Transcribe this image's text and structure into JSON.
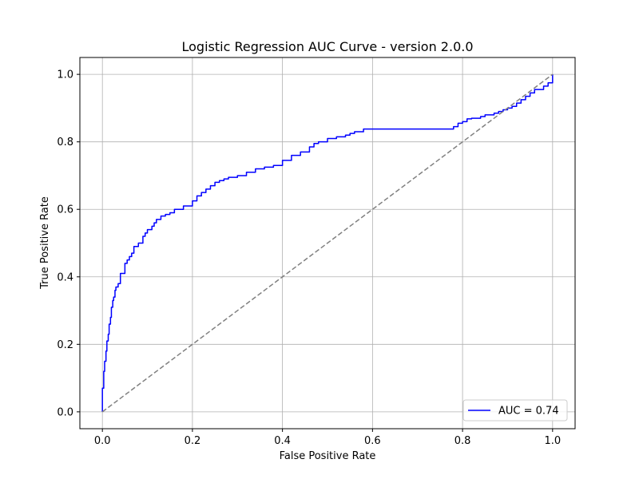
{
  "chart_data": {
    "type": "line",
    "title": "Logistic Regression AUC Curve - version 2.0.0",
    "xlabel": "False Positive Rate",
    "ylabel": "True Positive Rate",
    "xlim": [
      -0.05,
      1.05
    ],
    "ylim": [
      -0.05,
      1.05
    ],
    "xticks": [
      0.0,
      0.2,
      0.4,
      0.6,
      0.8,
      1.0
    ],
    "xtick_labels": [
      "0.0",
      "0.2",
      "0.4",
      "0.6",
      "0.8",
      "1.0"
    ],
    "yticks": [
      0.0,
      0.2,
      0.4,
      0.6,
      0.8,
      1.0
    ],
    "ytick_labels": [
      "0.0",
      "0.2",
      "0.4",
      "0.6",
      "0.8",
      "1.0"
    ],
    "grid": true,
    "legend_position": "lower-right",
    "series": [
      {
        "name": "AUC = 0.74",
        "color": "#0000ff",
        "style": "solid",
        "step": true,
        "x": [
          0.0,
          0.0,
          0.003,
          0.005,
          0.008,
          0.01,
          0.013,
          0.015,
          0.018,
          0.02,
          0.023,
          0.025,
          0.028,
          0.03,
          0.035,
          0.04,
          0.05,
          0.055,
          0.06,
          0.065,
          0.07,
          0.08,
          0.09,
          0.095,
          0.1,
          0.11,
          0.115,
          0.12,
          0.13,
          0.14,
          0.15,
          0.16,
          0.18,
          0.2,
          0.21,
          0.22,
          0.23,
          0.24,
          0.25,
          0.26,
          0.27,
          0.28,
          0.3,
          0.32,
          0.34,
          0.36,
          0.38,
          0.4,
          0.42,
          0.44,
          0.46,
          0.47,
          0.48,
          0.5,
          0.52,
          0.54,
          0.55,
          0.56,
          0.58,
          0.6,
          0.7,
          0.77,
          0.78,
          0.79,
          0.8,
          0.81,
          0.82,
          0.84,
          0.85,
          0.87,
          0.88,
          0.89,
          0.9,
          0.91,
          0.92,
          0.93,
          0.94,
          0.95,
          0.96,
          0.98,
          0.99,
          1.0
        ],
        "y": [
          0.0,
          0.07,
          0.12,
          0.15,
          0.18,
          0.21,
          0.23,
          0.26,
          0.28,
          0.31,
          0.33,
          0.34,
          0.36,
          0.37,
          0.38,
          0.41,
          0.44,
          0.45,
          0.46,
          0.47,
          0.49,
          0.5,
          0.52,
          0.53,
          0.54,
          0.55,
          0.56,
          0.57,
          0.58,
          0.585,
          0.59,
          0.6,
          0.61,
          0.625,
          0.64,
          0.65,
          0.66,
          0.67,
          0.68,
          0.685,
          0.69,
          0.695,
          0.7,
          0.71,
          0.72,
          0.725,
          0.73,
          0.745,
          0.76,
          0.77,
          0.785,
          0.795,
          0.8,
          0.81,
          0.815,
          0.82,
          0.825,
          0.83,
          0.838,
          0.838,
          0.838,
          0.838,
          0.845,
          0.855,
          0.86,
          0.868,
          0.87,
          0.875,
          0.88,
          0.885,
          0.89,
          0.895,
          0.9,
          0.905,
          0.915,
          0.925,
          0.935,
          0.945,
          0.955,
          0.965,
          0.975,
          1.0
        ]
      },
      {
        "name": "",
        "color": "#808080",
        "style": "dashed",
        "step": false,
        "x": [
          0.0,
          1.0
        ],
        "y": [
          0.0,
          1.0
        ]
      }
    ],
    "legend": [
      {
        "label": "AUC = 0.74",
        "color": "#0000ff"
      }
    ]
  }
}
